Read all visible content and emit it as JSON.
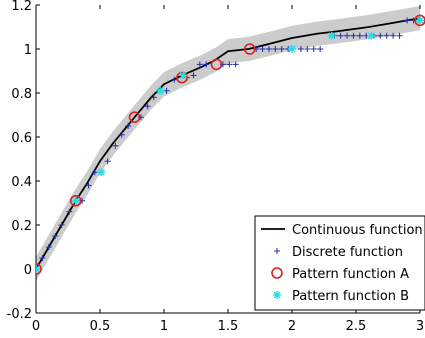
{
  "chart_data": {
    "type": "line",
    "title": "",
    "xlabel": "",
    "ylabel": "",
    "xlim": [
      0,
      3
    ],
    "ylim": [
      -0.2,
      1.2
    ],
    "x_ticks": [
      0,
      0.5,
      1,
      1.5,
      2,
      2.5,
      3
    ],
    "y_ticks": [
      -0.2,
      0,
      0.2,
      0.4,
      0.6,
      0.8,
      1,
      1.2
    ],
    "x_tick_labels": [
      "0",
      "0.5",
      "1",
      "1.5",
      "2",
      "2.5",
      "3"
    ],
    "y_tick_labels": [
      "-0.2",
      "0",
      "0.2",
      "0.4",
      "0.6",
      "0.8",
      "1",
      "1.2"
    ],
    "grid": false,
    "legend_position": "bottom-right",
    "band": {
      "color": "#cccccc",
      "half_width": 0.055
    },
    "series": [
      {
        "name": "Continuous function",
        "kind": "line",
        "color": "#000000",
        "x": [
          0,
          0.1,
          0.2,
          0.31,
          0.4,
          0.5,
          0.6,
          0.77,
          0.9,
          1.0,
          1.14,
          1.3,
          1.4,
          1.5,
          1.66,
          1.8,
          2.0,
          2.2,
          2.35,
          2.6,
          2.8,
          2.9,
          3.0
        ],
        "y": [
          0,
          0.1,
          0.2,
          0.31,
          0.39,
          0.49,
          0.57,
          0.69,
          0.78,
          0.84,
          0.88,
          0.92,
          0.95,
          0.99,
          1.0,
          1.02,
          1.05,
          1.07,
          1.08,
          1.1,
          1.12,
          1.13,
          1.14
        ]
      },
      {
        "name": "Discrete function",
        "kind": "plus",
        "color": "#1f2ea8",
        "x": [
          0.05,
          0.1,
          0.15,
          0.2,
          0.26,
          0.36,
          0.41,
          0.46,
          0.56,
          0.62,
          0.67,
          0.72,
          0.82,
          0.87,
          0.92,
          1.02,
          1.08,
          1.18,
          1.23,
          1.28,
          1.33,
          1.46,
          1.51,
          1.56,
          1.72,
          1.77,
          1.82,
          1.87,
          1.92,
          1.97,
          2.07,
          2.12,
          2.17,
          2.22,
          2.33,
          2.38,
          2.43,
          2.48,
          2.53,
          2.58,
          2.64,
          2.69,
          2.74,
          2.79,
          2.84,
          2.9,
          2.95
        ],
        "y": [
          0.05,
          0.1,
          0.15,
          0.2,
          0.26,
          0.31,
          0.38,
          0.44,
          0.49,
          0.56,
          0.61,
          0.65,
          0.69,
          0.74,
          0.78,
          0.81,
          0.86,
          0.87,
          0.88,
          0.93,
          0.93,
          0.93,
          0.93,
          0.93,
          1.0,
          1.0,
          1.0,
          1.0,
          1.0,
          1.0,
          1.0,
          1.0,
          1.0,
          1.0,
          1.06,
          1.06,
          1.06,
          1.06,
          1.06,
          1.06,
          1.06,
          1.06,
          1.06,
          1.06,
          1.06,
          1.13,
          1.13
        ]
      },
      {
        "name": "Pattern function A",
        "kind": "circle",
        "color": "#e02020",
        "x": [
          0,
          0.31,
          0.77,
          1.14,
          1.41,
          1.67,
          3.0
        ],
        "y": [
          0,
          0.31,
          0.69,
          0.87,
          0.93,
          1.0,
          1.13
        ]
      },
      {
        "name": "Pattern function B",
        "kind": "asterisk",
        "color": "#22dde6",
        "x": [
          0,
          0.31,
          0.51,
          0.97,
          1.15,
          2.0,
          2.31,
          2.62,
          3.0
        ],
        "y": [
          0,
          0.31,
          0.44,
          0.81,
          0.88,
          1.0,
          1.06,
          1.06,
          1.13
        ]
      }
    ]
  }
}
